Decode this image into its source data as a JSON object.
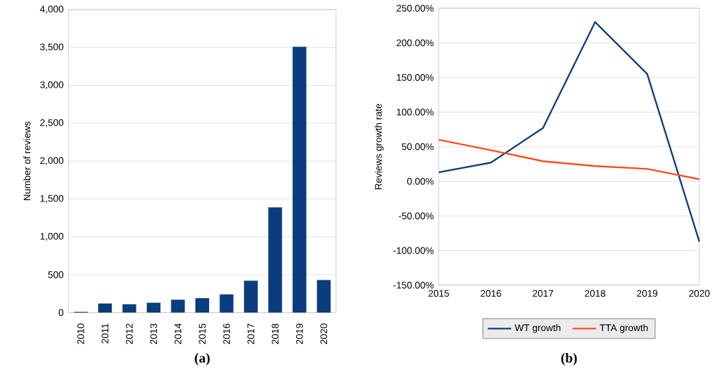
{
  "chart_data": [
    {
      "type": "bar",
      "ylabel": "Number of reviews",
      "categories": [
        "2010",
        "2011",
        "2012",
        "2013",
        "2014",
        "2015",
        "2016",
        "2017",
        "2018",
        "2019",
        "2020"
      ],
      "values": [
        10,
        120,
        110,
        130,
        170,
        190,
        240,
        420,
        1390,
        3510,
        430
      ],
      "color": "#0b3d7e",
      "ylim": [
        0,
        4000
      ],
      "yticks": [
        {
          "value": 0,
          "label": "0"
        },
        {
          "value": 500,
          "label": "500"
        },
        {
          "value": 1000,
          "label": "1,000"
        },
        {
          "value": 1500,
          "label": "1,500"
        },
        {
          "value": 2000,
          "label": "2,000"
        },
        {
          "value": 2500,
          "label": "2,500"
        },
        {
          "value": 3000,
          "label": "3,000"
        },
        {
          "value": 3500,
          "label": "3,500"
        },
        {
          "value": 4000,
          "label": "4,000"
        }
      ],
      "grid": "y",
      "annotations": [
        "**(a)**"
      ]
    },
    {
      "type": "line",
      "ylabel": "Reviews growth rate",
      "x": [
        2015,
        2016,
        2017,
        2018,
        2019,
        2020
      ],
      "series": [
        {
          "name": "WT growth",
          "color": "#0b3d7e",
          "values": [
            13,
            27,
            77,
            230,
            155,
            -87
          ]
        },
        {
          "name": "TTA growth",
          "color": "#ff4a1c",
          "values": [
            60,
            45,
            29,
            22,
            18,
            3
          ]
        }
      ],
      "xlim": [
        2015,
        2020
      ],
      "xticks": [
        2015,
        2016,
        2017,
        2018,
        2019,
        2020
      ],
      "ylim": [
        -150,
        250
      ],
      "yticks": [
        {
          "value": -150,
          "label": "-150.00%"
        },
        {
          "value": -100,
          "label": "-100.00%"
        },
        {
          "value": -50,
          "label": "-50.00%"
        },
        {
          "value": 0,
          "label": "0.00%"
        },
        {
          "value": 50,
          "label": "50.00%"
        },
        {
          "value": 100,
          "label": "100.00%"
        },
        {
          "value": 150,
          "label": "150.00%"
        },
        {
          "value": 200,
          "label": "200.00%"
        },
        {
          "value": 250,
          "label": "250.00%"
        }
      ],
      "grid": "y",
      "legend": "bottom",
      "line_style": "solid",
      "marker": "none",
      "annotations": [
        "**(b)**"
      ]
    }
  ]
}
